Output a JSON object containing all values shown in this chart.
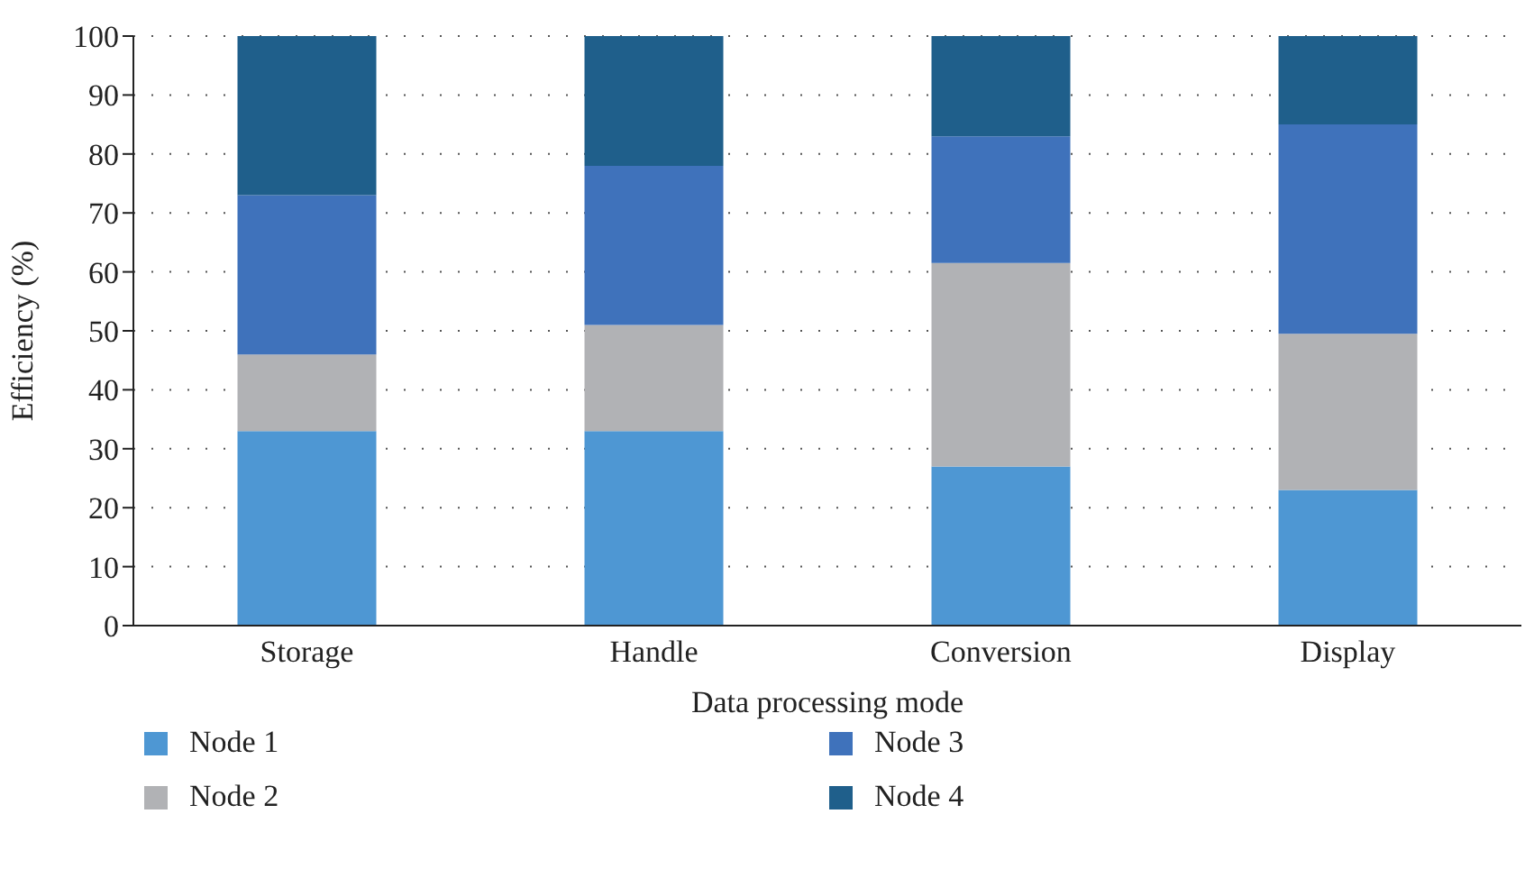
{
  "chart_data": {
    "type": "bar",
    "stacked": true,
    "xlabel": "Data processing mode",
    "ylabel": "Efficiency (%)",
    "categories": [
      "Storage",
      "Handle",
      "Conversion",
      "Display"
    ],
    "series": [
      {
        "name": "Node 1",
        "color": "#4e97d3",
        "values": [
          33,
          33,
          27,
          23
        ]
      },
      {
        "name": "Node 2",
        "color": "#b1b2b5",
        "values": [
          13,
          18,
          34.5,
          26.5
        ]
      },
      {
        "name": "Node 3",
        "color": "#3f72bb",
        "values": [
          27,
          27,
          21.5,
          35.5
        ]
      },
      {
        "name": "Node 4",
        "color": "#1f5f8b",
        "values": [
          27,
          22,
          17,
          15
        ]
      }
    ],
    "ylim": [
      0,
      100
    ],
    "yticks": [
      0,
      10,
      20,
      30,
      40,
      50,
      60,
      70,
      80,
      90,
      100
    ],
    "grid": "y",
    "legend": "bottom"
  }
}
